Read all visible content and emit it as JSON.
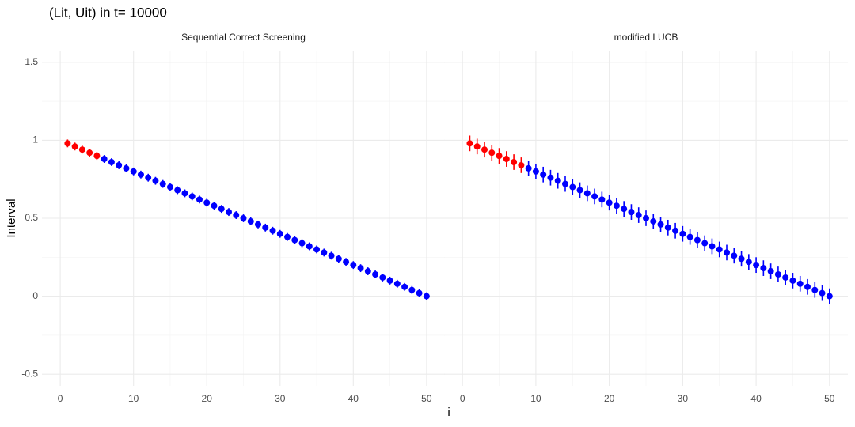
{
  "title": "(Lit, Uit) in t= 10000",
  "x_label": "i",
  "y_label": "Interval",
  "chart_data": [
    {
      "type": "errorbar",
      "title": "Sequential Correct Screening",
      "x": [
        1,
        2,
        3,
        4,
        5,
        6,
        7,
        8,
        9,
        10,
        11,
        12,
        13,
        14,
        15,
        16,
        17,
        18,
        19,
        20,
        21,
        22,
        23,
        24,
        25,
        26,
        27,
        28,
        29,
        30,
        31,
        32,
        33,
        34,
        35,
        36,
        37,
        38,
        39,
        40,
        41,
        42,
        43,
        44,
        45,
        46,
        47,
        48,
        49,
        50
      ],
      "values": [
        0.98,
        0.96,
        0.94,
        0.92,
        0.9,
        0.88,
        0.86,
        0.84,
        0.82,
        0.8,
        0.78,
        0.76,
        0.74,
        0.72,
        0.7,
        0.68,
        0.66,
        0.64,
        0.62,
        0.6,
        0.58,
        0.56,
        0.54,
        0.52,
        0.5,
        0.48,
        0.46,
        0.44,
        0.42,
        0.4,
        0.38,
        0.36,
        0.34,
        0.32,
        0.3,
        0.28,
        0.26,
        0.24,
        0.22,
        0.2,
        0.18,
        0.16,
        0.14,
        0.12,
        0.1,
        0.08,
        0.06,
        0.04,
        0.02,
        0
      ],
      "errors": [
        0.025,
        0.025,
        0.025,
        0.025,
        0.025,
        0.025,
        0.025,
        0.025,
        0.025,
        0.025,
        0.025,
        0.025,
        0.025,
        0.025,
        0.025,
        0.025,
        0.025,
        0.025,
        0.025,
        0.025,
        0.025,
        0.025,
        0.025,
        0.025,
        0.025,
        0.025,
        0.025,
        0.025,
        0.025,
        0.025,
        0.025,
        0.025,
        0.025,
        0.025,
        0.025,
        0.025,
        0.025,
        0.025,
        0.025,
        0.025,
        0.025,
        0.025,
        0.025,
        0.025,
        0.025,
        0.025,
        0.025,
        0.025,
        0.025,
        0.025
      ],
      "color": "#0000ff",
      "highlight_color": "#ff0000",
      "highlight_count": 5,
      "xlim": [
        -2.5,
        52.5
      ],
      "xticks": [
        0,
        10,
        20,
        30,
        40,
        50
      ],
      "ylim": [
        -0.575,
        1.575
      ],
      "yticks": [
        -0.5,
        0,
        0.5,
        1,
        1.5
      ],
      "grid": true
    },
    {
      "type": "errorbar",
      "title": "modified LUCB",
      "x": [
        1,
        2,
        3,
        4,
        5,
        6,
        7,
        8,
        9,
        10,
        11,
        12,
        13,
        14,
        15,
        16,
        17,
        18,
        19,
        20,
        21,
        22,
        23,
        24,
        25,
        26,
        27,
        28,
        29,
        30,
        31,
        32,
        33,
        34,
        35,
        36,
        37,
        38,
        39,
        40,
        41,
        42,
        43,
        44,
        45,
        46,
        47,
        48,
        49,
        50
      ],
      "values": [
        0.98,
        0.96,
        0.94,
        0.92,
        0.9,
        0.88,
        0.86,
        0.84,
        0.82,
        0.8,
        0.78,
        0.76,
        0.74,
        0.72,
        0.7,
        0.68,
        0.66,
        0.64,
        0.62,
        0.6,
        0.58,
        0.56,
        0.54,
        0.52,
        0.5,
        0.48,
        0.46,
        0.44,
        0.42,
        0.4,
        0.38,
        0.36,
        0.34,
        0.32,
        0.3,
        0.28,
        0.26,
        0.24,
        0.22,
        0.2,
        0.18,
        0.16,
        0.14,
        0.12,
        0.1,
        0.08,
        0.06,
        0.04,
        0.02,
        0
      ],
      "errors": [
        0.05,
        0.05,
        0.05,
        0.05,
        0.05,
        0.05,
        0.05,
        0.05,
        0.05,
        0.05,
        0.05,
        0.05,
        0.05,
        0.05,
        0.05,
        0.05,
        0.05,
        0.05,
        0.05,
        0.05,
        0.05,
        0.05,
        0.05,
        0.05,
        0.05,
        0.05,
        0.05,
        0.05,
        0.05,
        0.05,
        0.05,
        0.05,
        0.05,
        0.05,
        0.05,
        0.05,
        0.05,
        0.05,
        0.05,
        0.05,
        0.05,
        0.05,
        0.05,
        0.05,
        0.05,
        0.05,
        0.05,
        0.05,
        0.05,
        0.05
      ],
      "color": "#0000ff",
      "highlight_color": "#ff0000",
      "highlight_count": 8,
      "xlim": [
        -2.5,
        52.5
      ],
      "xticks": [
        0,
        10,
        20,
        30,
        40,
        50
      ],
      "ylim": [
        -0.575,
        1.575
      ],
      "yticks": [
        -0.5,
        0,
        0.5,
        1,
        1.5
      ],
      "grid": true
    }
  ]
}
